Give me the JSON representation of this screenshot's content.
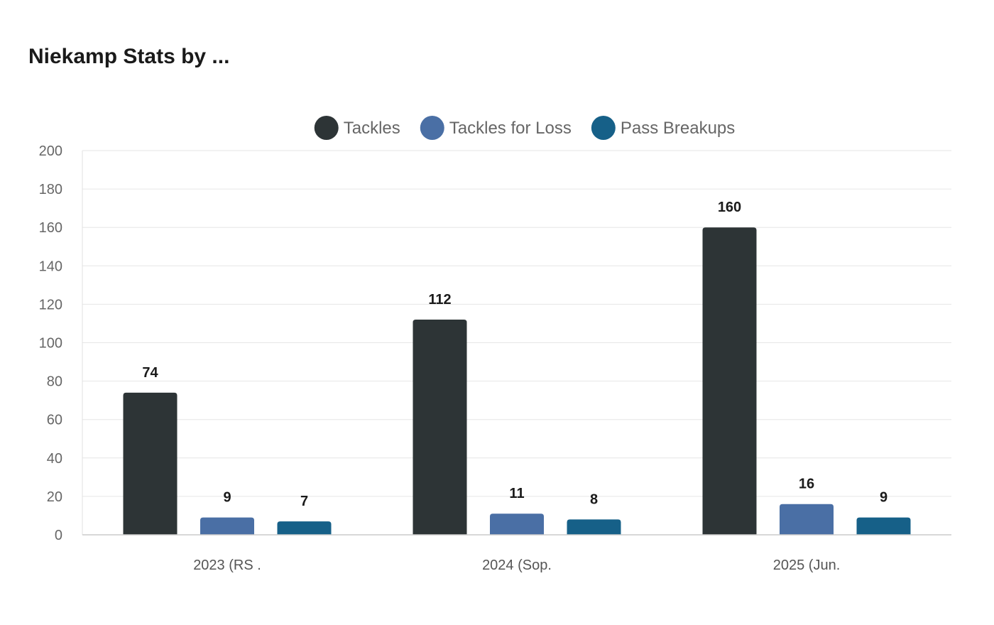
{
  "title": "Niekamp Stats by ...",
  "chart_data": {
    "type": "bar",
    "title": "Niekamp Stats by ...",
    "categories": [
      "2023 (RS .",
      "2024 (Sop.",
      "2025 (Jun."
    ],
    "series": [
      {
        "name": "Tackles",
        "color": "#2d3436",
        "values": [
          74,
          112,
          160
        ]
      },
      {
        "name": "Tackles for Loss",
        "color": "#4a6fa5",
        "values": [
          9,
          11,
          16
        ]
      },
      {
        "name": "Pass Breakups",
        "color": "#166088",
        "values": [
          7,
          8,
          9
        ]
      }
    ],
    "ylim": [
      0,
      200
    ],
    "yticks": [
      0,
      20,
      40,
      60,
      80,
      100,
      120,
      140,
      160,
      180,
      200
    ],
    "grid": true,
    "legend": "top-center",
    "xlabel": "",
    "ylabel": ""
  }
}
